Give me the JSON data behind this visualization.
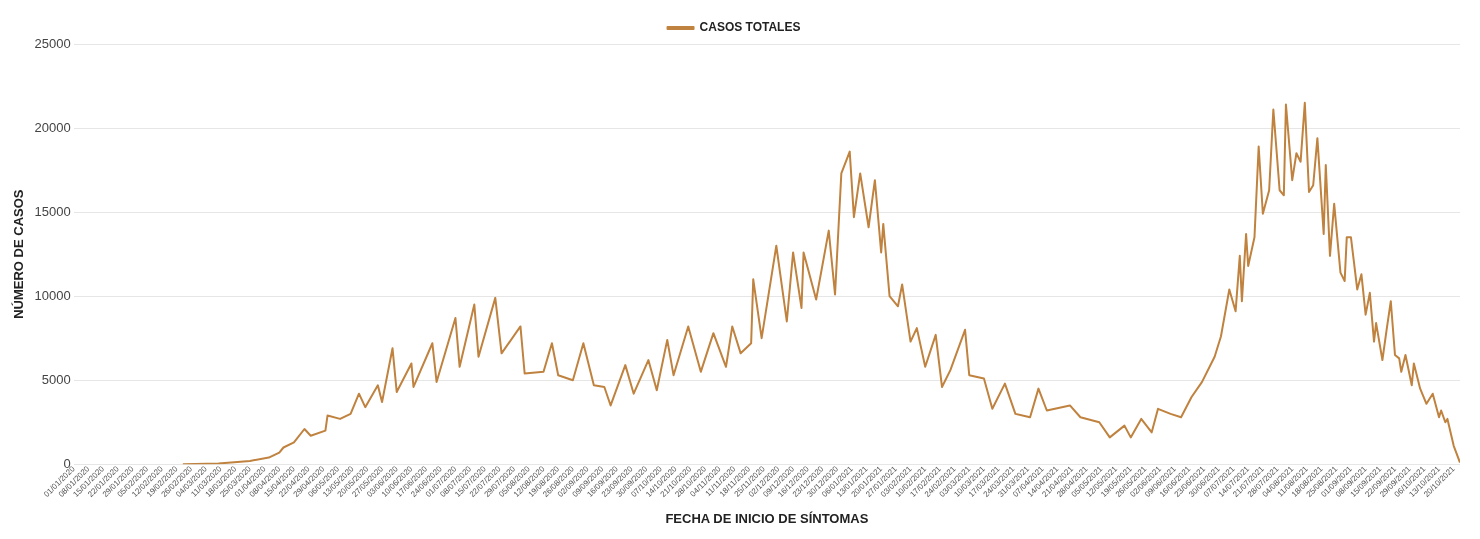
{
  "chart_data": {
    "type": "line",
    "xlabel": "FECHA DE INICIO DE SÍNTOMAS",
    "ylabel": "NÚMERO DE CASOS",
    "xlim": [
      "2020-01-01",
      "2021-10-23"
    ],
    "ylim": [
      0,
      25000
    ],
    "yticks": [
      0,
      5000,
      10000,
      15000,
      20000,
      25000
    ],
    "xticks": [
      {
        "value": "2020-01-01",
        "label": "01/01/2020"
      },
      {
        "value": "2020-01-08",
        "label": "08/01/2020"
      },
      {
        "value": "2020-01-15",
        "label": "15/01/2020"
      },
      {
        "value": "2020-01-22",
        "label": "22/01/2020"
      },
      {
        "value": "2020-01-29",
        "label": "29/01/2020"
      },
      {
        "value": "2020-02-05",
        "label": "05/02/2020"
      },
      {
        "value": "2020-02-12",
        "label": "12/02/2020"
      },
      {
        "value": "2020-02-19",
        "label": "19/02/2020"
      },
      {
        "value": "2020-02-26",
        "label": "26/02/2020"
      },
      {
        "value": "2020-03-04",
        "label": "04/03/2020"
      },
      {
        "value": "2020-03-11",
        "label": "11/03/2020"
      },
      {
        "value": "2020-03-18",
        "label": "18/03/2020"
      },
      {
        "value": "2020-03-25",
        "label": "25/03/2020"
      },
      {
        "value": "2020-04-01",
        "label": "01/04/2020"
      },
      {
        "value": "2020-04-08",
        "label": "08/04/2020"
      },
      {
        "value": "2020-04-15",
        "label": "15/04/2020"
      },
      {
        "value": "2020-04-22",
        "label": "22/04/2020"
      },
      {
        "value": "2020-04-29",
        "label": "29/04/2020"
      },
      {
        "value": "2020-05-06",
        "label": "06/05/2020"
      },
      {
        "value": "2020-05-13",
        "label": "13/05/2020"
      },
      {
        "value": "2020-05-20",
        "label": "20/05/2020"
      },
      {
        "value": "2020-05-27",
        "label": "27/05/2020"
      },
      {
        "value": "2020-06-03",
        "label": "03/06/2020"
      },
      {
        "value": "2020-06-10",
        "label": "10/06/2020"
      },
      {
        "value": "2020-06-17",
        "label": "17/06/2020"
      },
      {
        "value": "2020-06-24",
        "label": "24/06/2020"
      },
      {
        "value": "2020-07-01",
        "label": "01/07/2020"
      },
      {
        "value": "2020-07-08",
        "label": "08/07/2020"
      },
      {
        "value": "2020-07-15",
        "label": "15/07/2020"
      },
      {
        "value": "2020-07-22",
        "label": "22/07/2020"
      },
      {
        "value": "2020-07-29",
        "label": "29/07/2020"
      },
      {
        "value": "2020-08-05",
        "label": "05/08/2020"
      },
      {
        "value": "2020-08-12",
        "label": "12/08/2020"
      },
      {
        "value": "2020-08-19",
        "label": "19/08/2020"
      },
      {
        "value": "2020-08-26",
        "label": "26/08/2020"
      },
      {
        "value": "2020-09-02",
        "label": "02/09/2020"
      },
      {
        "value": "2020-09-09",
        "label": "09/09/2020"
      },
      {
        "value": "2020-09-16",
        "label": "16/09/2020"
      },
      {
        "value": "2020-09-23",
        "label": "23/09/2020"
      },
      {
        "value": "2020-09-30",
        "label": "30/09/2020"
      },
      {
        "value": "2020-10-07",
        "label": "07/10/2020"
      },
      {
        "value": "2020-10-14",
        "label": "14/10/2020"
      },
      {
        "value": "2020-10-21",
        "label": "21/10/2020"
      },
      {
        "value": "2020-10-28",
        "label": "28/10/2020"
      },
      {
        "value": "2020-11-04",
        "label": "04/11/2020"
      },
      {
        "value": "2020-11-11",
        "label": "11/11/2020"
      },
      {
        "value": "2020-11-18",
        "label": "18/11/2020"
      },
      {
        "value": "2020-11-25",
        "label": "25/11/2020"
      },
      {
        "value": "2020-12-02",
        "label": "02/12/2020"
      },
      {
        "value": "2020-12-09",
        "label": "09/12/2020"
      },
      {
        "value": "2020-12-16",
        "label": "16/12/2020"
      },
      {
        "value": "2020-12-23",
        "label": "23/12/2020"
      },
      {
        "value": "2020-12-30",
        "label": "30/12/2020"
      },
      {
        "value": "2021-01-06",
        "label": "06/01/2021"
      },
      {
        "value": "2021-01-13",
        "label": "13/01/2021"
      },
      {
        "value": "2021-01-20",
        "label": "20/01/2021"
      },
      {
        "value": "2021-01-27",
        "label": "27/01/2021"
      },
      {
        "value": "2021-02-03",
        "label": "03/02/2021"
      },
      {
        "value": "2021-02-10",
        "label": "10/02/2021"
      },
      {
        "value": "2021-02-17",
        "label": "17/02/2021"
      },
      {
        "value": "2021-02-24",
        "label": "24/02/2021"
      },
      {
        "value": "2021-03-03",
        "label": "03/03/2021"
      },
      {
        "value": "2021-03-10",
        "label": "10/03/2021"
      },
      {
        "value": "2021-03-17",
        "label": "17/03/2021"
      },
      {
        "value": "2021-03-24",
        "label": "24/03/2021"
      },
      {
        "value": "2021-03-31",
        "label": "31/03/2021"
      },
      {
        "value": "2021-04-07",
        "label": "07/04/2021"
      },
      {
        "value": "2021-04-14",
        "label": "14/04/2021"
      },
      {
        "value": "2021-04-21",
        "label": "21/04/2021"
      },
      {
        "value": "2021-04-28",
        "label": "28/04/2021"
      },
      {
        "value": "2021-05-05",
        "label": "05/05/2021"
      },
      {
        "value": "2021-05-12",
        "label": "12/05/2021"
      },
      {
        "value": "2021-05-19",
        "label": "19/05/2021"
      },
      {
        "value": "2021-05-26",
        "label": "26/05/2021"
      },
      {
        "value": "2021-06-02",
        "label": "02/06/2021"
      },
      {
        "value": "2021-06-09",
        "label": "09/06/2021"
      },
      {
        "value": "2021-06-16",
        "label": "16/06/2021"
      },
      {
        "value": "2021-06-23",
        "label": "23/06/2021"
      },
      {
        "value": "2021-06-30",
        "label": "30/06/2021"
      },
      {
        "value": "2021-07-07",
        "label": "07/07/2021"
      },
      {
        "value": "2021-07-14",
        "label": "14/07/2021"
      },
      {
        "value": "2021-07-21",
        "label": "21/07/2021"
      },
      {
        "value": "2021-07-28",
        "label": "28/07/2021"
      },
      {
        "value": "2021-08-04",
        "label": "04/08/2021"
      },
      {
        "value": "2021-08-11",
        "label": "11/08/2021"
      },
      {
        "value": "2021-08-18",
        "label": "18/08/2021"
      },
      {
        "value": "2021-08-25",
        "label": "25/08/2021"
      },
      {
        "value": "2021-09-01",
        "label": "01/09/2021"
      },
      {
        "value": "2021-09-08",
        "label": "08/09/2021"
      },
      {
        "value": "2021-09-15",
        "label": "15/09/2021"
      },
      {
        "value": "2021-09-22",
        "label": "22/09/2021"
      },
      {
        "value": "2021-09-29",
        "label": "29/09/2021"
      },
      {
        "value": "2021-10-06",
        "label": "06/10/2021"
      },
      {
        "value": "2021-10-13",
        "label": "13/10/2021"
      },
      {
        "value": "2021-10-20",
        "label": "20/10/2021"
      }
    ],
    "grid": "y",
    "legend": "top",
    "marker": "none",
    "line_style": "solid",
    "series": [
      {
        "name": "CASOS TOTALES",
        "color": "#c0823f",
        "x": [
          "2020-02-22",
          "2020-03-10",
          "2020-03-25",
          "2020-04-03",
          "2020-04-08",
          "2020-04-10",
          "2020-04-15",
          "2020-04-20",
          "2020-04-23",
          "2020-04-30",
          "2020-05-01",
          "2020-05-07",
          "2020-05-12",
          "2020-05-16",
          "2020-05-19",
          "2020-05-25",
          "2020-05-27",
          "2020-06-01",
          "2020-06-03",
          "2020-06-10",
          "2020-06-11",
          "2020-06-20",
          "2020-06-22",
          "2020-07-01",
          "2020-07-03",
          "2020-07-10",
          "2020-07-12",
          "2020-07-20",
          "2020-07-23",
          "2020-08-01",
          "2020-08-03",
          "2020-08-12",
          "2020-08-16",
          "2020-08-19",
          "2020-08-26",
          "2020-08-31",
          "2020-09-05",
          "2020-09-10",
          "2020-09-13",
          "2020-09-20",
          "2020-09-24",
          "2020-10-01",
          "2020-10-05",
          "2020-10-10",
          "2020-10-13",
          "2020-10-20",
          "2020-10-26",
          "2020-11-01",
          "2020-11-07",
          "2020-11-10",
          "2020-11-14",
          "2020-11-19",
          "2020-11-20",
          "2020-11-24",
          "2020-12-01",
          "2020-12-06",
          "2020-12-09",
          "2020-12-13",
          "2020-12-14",
          "2020-12-20",
          "2020-12-26",
          "2020-12-29",
          "2021-01-01",
          "2021-01-05",
          "2021-01-07",
          "2021-01-10",
          "2021-01-14",
          "2021-01-17",
          "2021-01-20",
          "2021-01-21",
          "2021-01-24",
          "2021-01-28",
          "2021-01-30",
          "2021-02-03",
          "2021-02-06",
          "2021-02-10",
          "2021-02-15",
          "2021-02-18",
          "2021-02-22",
          "2021-03-01",
          "2021-03-03",
          "2021-03-10",
          "2021-03-14",
          "2021-03-20",
          "2021-03-25",
          "2021-04-01",
          "2021-04-05",
          "2021-04-09",
          "2021-04-20",
          "2021-04-25",
          "2021-05-04",
          "2021-05-09",
          "2021-05-16",
          "2021-05-19",
          "2021-05-24",
          "2021-05-29",
          "2021-06-01",
          "2021-06-07",
          "2021-06-12",
          "2021-06-17",
          "2021-06-22",
          "2021-06-28",
          "2021-07-01",
          "2021-07-05",
          "2021-07-08",
          "2021-07-10",
          "2021-07-11",
          "2021-07-13",
          "2021-07-14",
          "2021-07-17",
          "2021-07-19",
          "2021-07-21",
          "2021-07-24",
          "2021-07-26",
          "2021-07-29",
          "2021-07-31",
          "2021-08-01",
          "2021-08-04",
          "2021-08-06",
          "2021-08-08",
          "2021-08-10",
          "2021-08-12",
          "2021-08-14",
          "2021-08-16",
          "2021-08-19",
          "2021-08-20",
          "2021-08-22",
          "2021-08-24",
          "2021-08-27",
          "2021-08-29",
          "2021-08-30",
          "2021-09-01",
          "2021-09-04",
          "2021-09-06",
          "2021-09-08",
          "2021-09-10",
          "2021-09-12",
          "2021-09-13",
          "2021-09-16",
          "2021-09-18",
          "2021-09-20",
          "2021-09-22",
          "2021-09-24",
          "2021-09-25",
          "2021-09-27",
          "2021-09-30",
          "2021-10-01",
          "2021-10-04",
          "2021-10-07",
          "2021-10-10",
          "2021-10-13",
          "2021-10-14",
          "2021-10-16",
          "2021-10-17",
          "2021-10-20",
          "2021-10-23"
        ],
        "values": [
          0,
          50,
          200,
          400,
          700,
          1000,
          1300,
          2100,
          1700,
          2000,
          2900,
          2700,
          3000,
          4200,
          3400,
          4700,
          3700,
          6900,
          4300,
          6000,
          4600,
          7200,
          4900,
          8700,
          5800,
          9500,
          6400,
          9900,
          6600,
          8200,
          5400,
          5500,
          7200,
          5300,
          5000,
          7200,
          4700,
          4600,
          3500,
          5900,
          4200,
          6200,
          4400,
          7400,
          5300,
          8200,
          5500,
          7800,
          5800,
          8200,
          6600,
          7200,
          11000,
          7500,
          13000,
          8500,
          12600,
          9300,
          12600,
          9800,
          13900,
          10100,
          17300,
          18600,
          14700,
          17300,
          14100,
          16900,
          12600,
          14300,
          10000,
          9400,
          10700,
          7300,
          8100,
          5800,
          7700,
          4600,
          5600,
          8000,
          5300,
          5100,
          3300,
          4800,
          3000,
          2800,
          4500,
          3200,
          3500,
          2800,
          2500,
          1600,
          2300,
          1600,
          2700,
          1900,
          3300,
          3000,
          2800,
          4000,
          4900,
          6400,
          7600,
          10400,
          9100,
          12400,
          9700,
          13700,
          11800,
          13500,
          18900,
          14900,
          16300,
          21100,
          16300,
          16000,
          21400,
          16900,
          18500,
          18000,
          21500,
          16200,
          16600,
          19400,
          13700,
          17800,
          12400,
          15500,
          11400,
          10900,
          13500,
          13500,
          10400,
          11300,
          8900,
          10200,
          7300,
          8400,
          6200,
          8000,
          9700,
          6500,
          6300,
          5500,
          6500,
          4700,
          6000,
          4500,
          3600,
          4200,
          2800,
          3200,
          2500,
          2700,
          1100,
          100
        ]
      }
    ]
  }
}
